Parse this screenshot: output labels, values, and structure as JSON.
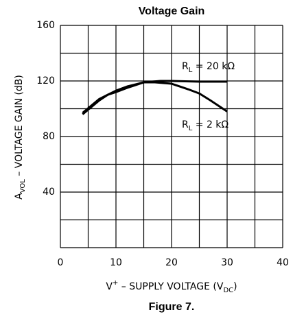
{
  "chart_data": {
    "type": "line",
    "title": "Voltage Gain",
    "caption": "Figure 7.",
    "x_label": {
      "main": "V",
      "sup": "+",
      "rest": " – SUPPLY VOLTAGE (V",
      "sub": "DC",
      "end": ")"
    },
    "y_label": {
      "main": "A",
      "sub": "VOL",
      "rest": " – VOLTAGE GAIN (dB)"
    },
    "xlim": [
      0,
      40
    ],
    "xticks": [
      0,
      10,
      20,
      30,
      40
    ],
    "xgrid": [
      0,
      5,
      10,
      15,
      20,
      25,
      30,
      35,
      40
    ],
    "ylim": [
      0,
      160
    ],
    "yticks": [
      40,
      80,
      120,
      160
    ],
    "ygrid": [
      0,
      20,
      40,
      60,
      80,
      100,
      120,
      140,
      160
    ],
    "grid": true,
    "series": [
      {
        "name": "RL = 20 kΩ",
        "color": "#000000",
        "x": [
          4,
          5.5,
          7,
          8.5,
          10,
          12,
          15,
          18,
          20,
          25,
          30
        ],
        "values": [
          96,
          101,
          106,
          110,
          113,
          116,
          119,
          120,
          120,
          119.5,
          119.5
        ]
      },
      {
        "name": "RL = 2 kΩ",
        "color": "#000000",
        "x": [
          4,
          5.5,
          7,
          8.5,
          10,
          12,
          15,
          17,
          20,
          23,
          25,
          27,
          30
        ],
        "values": [
          97,
          102,
          107,
          110,
          112,
          115,
          119,
          119,
          118,
          114,
          111,
          106,
          98
        ]
      }
    ]
  }
}
